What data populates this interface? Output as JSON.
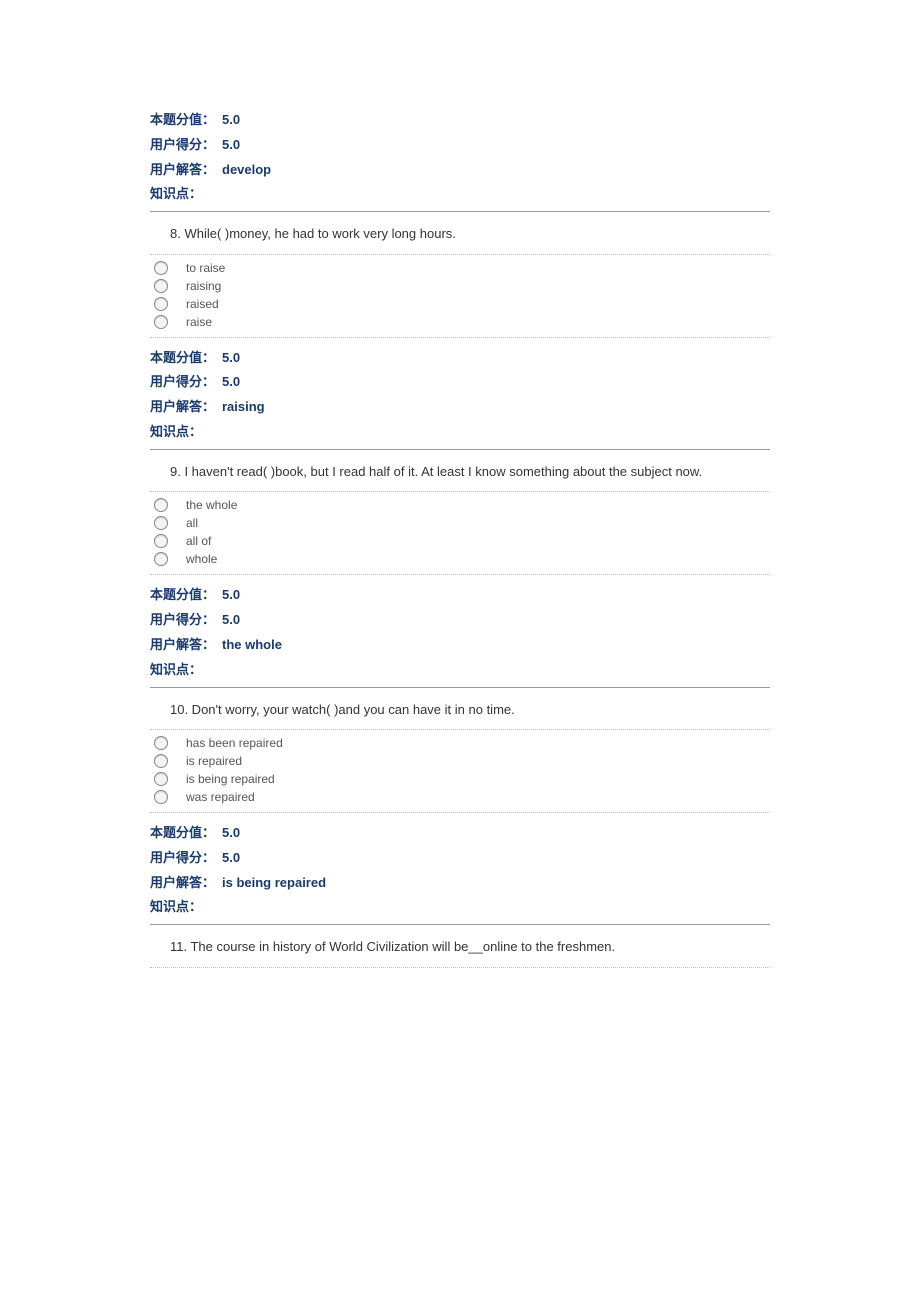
{
  "colors": {
    "text": "#333333",
    "meta_label": "#1a3a6e",
    "meta_value": "#1a3a6e",
    "option_text": "#555555",
    "divider_strong": "#999999",
    "divider_dotted": "#bbbbbb",
    "radio_border": "#888888",
    "radio_fill": "#f4f4f4",
    "background": "#ffffff"
  },
  "typography": {
    "base_font_size": 13,
    "option_font_size": 12,
    "font_family": "Arial, Microsoft YaHei, sans-serif",
    "meta_weight": "bold"
  },
  "labels": {
    "score_label": "本题分值：",
    "user_score_label": "用户得分：",
    "user_answer_label": "用户解答：",
    "knowledge_label": "知识点："
  },
  "q7_meta": {
    "score": "5.0",
    "user_score": "5.0",
    "user_answer": "develop",
    "knowledge": ""
  },
  "q8": {
    "text": "8. While(    )money, he had to work very long hours.",
    "options": [
      "to raise",
      "raising",
      "raised",
      "raise"
    ],
    "meta": {
      "score": "5.0",
      "user_score": "5.0",
      "user_answer": "raising",
      "knowledge": ""
    }
  },
  "q9": {
    "text": "9. I haven't read(    )book, but I read half of it. At least I know something about the subject now.",
    "options": [
      "the whole",
      "all",
      "all of",
      "whole"
    ],
    "meta": {
      "score": "5.0",
      "user_score": "5.0",
      "user_answer": "the whole",
      "knowledge": ""
    }
  },
  "q10": {
    "text": "10. Don't worry, your watch(    )and you can have it in no time.",
    "options": [
      "has been repaired",
      "is repaired",
      "is being repaired",
      "was repaired"
    ],
    "meta": {
      "score": "5.0",
      "user_score": "5.0",
      "user_answer": "is being repaired",
      "knowledge": ""
    }
  },
  "q11": {
    "text": "11. The course in history of World Civilization will be__online to the freshmen."
  }
}
